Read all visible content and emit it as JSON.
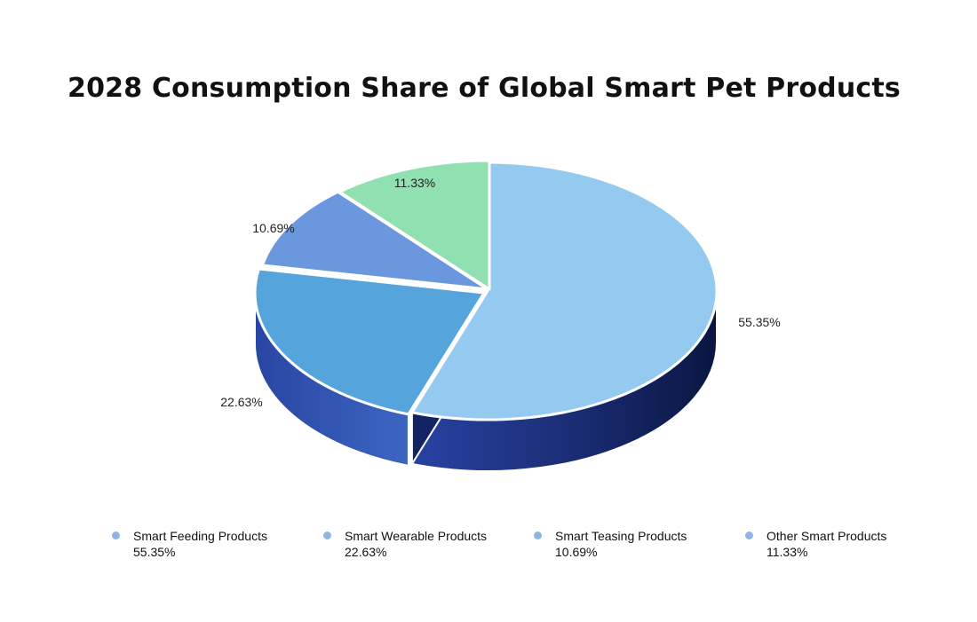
{
  "chart_data": {
    "type": "pie",
    "title": "2028 Consumption Share of Global Smart Pet Products",
    "slices": [
      {
        "label": "Smart Feeding Products",
        "value": 55.35,
        "data_label": "55.35%",
        "legend": "Smart Feeding Products 55.35%",
        "color": "#94c9f0"
      },
      {
        "label": "Smart Wearable Products",
        "value": 22.63,
        "data_label": "22.63%",
        "legend": "Smart Wearable Products 22.63%",
        "color": "#55a5dc"
      },
      {
        "label": "Smart Teasing Products",
        "value": 10.69,
        "data_label": "10.69%",
        "legend": "Smart Teasing Products 10.69%",
        "color": "#6b97de"
      },
      {
        "label": "Other Smart Products",
        "value": 11.33,
        "data_label": "11.33%",
        "legend": "Other Smart Products 11.33%",
        "color": "#90e0b2"
      }
    ],
    "legend_position": "bottom",
    "legend_marker_color": "#8db7e0",
    "side_color_dark": "#0a1540",
    "side_color_mid": "#2a44a6",
    "style": "3d-exploded"
  }
}
